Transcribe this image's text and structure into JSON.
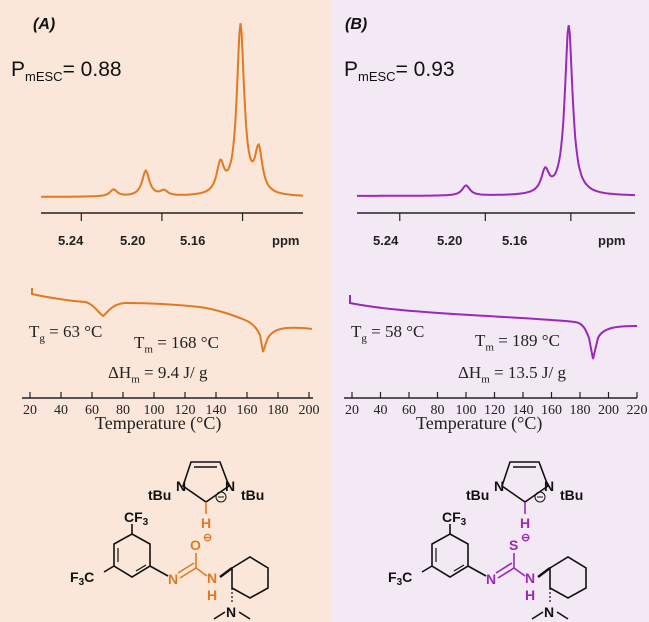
{
  "figure": {
    "panels": [
      {
        "label": "(A)",
        "p_mesc_label": "P",
        "p_mesc_sub": "mESC",
        "p_mesc_value": "= 0.88",
        "nmr_ticks": [
          "5.24",
          "5.20",
          "5.16"
        ],
        "nmr_unit": "ppm",
        "tg_label": "T",
        "tg_sub": "g",
        "tg_value": " = 63 °C",
        "tm_label": "T",
        "tm_sub": "m",
        "tm_value": " = 168 °C",
        "dh_label": "ΔH",
        "dh_sub": "m",
        "dh_value": " = 9.4 J/ g",
        "temp_ticks": [
          "20",
          "40",
          "60",
          "80",
          "100",
          "120",
          "140",
          "160",
          "180",
          "200"
        ],
        "temp_axis_title": "Temperature (°C)",
        "color": "#e07a22"
      },
      {
        "label": "(B)",
        "p_mesc_label": "P",
        "p_mesc_sub": "mESC",
        "p_mesc_value": "= 0.93",
        "nmr_ticks": [
          "5.24",
          "5.20",
          "5.16"
        ],
        "nmr_unit": "ppm",
        "tg_label": "T",
        "tg_sub": "g",
        "tg_value": " = 58 °C",
        "tm_label": "T",
        "tm_sub": "m",
        "tm_value": " = 189 °C",
        "dh_label": "ΔH",
        "dh_sub": "m",
        "dh_value": " = 13.5 J/ g",
        "temp_ticks": [
          "20",
          "40",
          "60",
          "80",
          "100",
          "120",
          "140",
          "160",
          "180",
          "200",
          "220"
        ],
        "temp_axis_title": "Temperature (°C)",
        "color": "#9b28b8"
      }
    ],
    "structure": {
      "tbu": "tBu",
      "cf3": "CF",
      "cf3_sub": "3",
      "f3c_f": "F",
      "f3c_sub": "3",
      "f3c_c": "C",
      "n": "N",
      "h": "H",
      "o": "O",
      "s": "S",
      "minus": "⊖"
    }
  },
  "chart_data": [
    {
      "type": "line",
      "panel": "A",
      "name": "1H NMR methine region",
      "x_range": [
        5.26,
        5.13
      ],
      "xlabel": "ppm",
      "x_ticks": [
        5.24,
        5.2,
        5.16
      ],
      "peaks_ppm": [
        5.224,
        5.208,
        5.199,
        5.171,
        5.161,
        5.152
      ],
      "relative_heights": [
        0.04,
        0.15,
        0.03,
        0.17,
        1.0,
        0.25
      ]
    },
    {
      "type": "line",
      "panel": "A",
      "name": "DSC",
      "xlabel": "Temperature (°C)",
      "xlim": [
        20,
        200
      ],
      "Tg_C": 63,
      "Tm_C": 168,
      "dHm_J_per_g": 9.4
    },
    {
      "type": "line",
      "panel": "B",
      "name": "1H NMR methine region",
      "x_range": [
        5.26,
        5.13
      ],
      "xlabel": "ppm",
      "x_ticks": [
        5.24,
        5.2,
        5.16
      ],
      "peaks_ppm": [
        5.209,
        5.172,
        5.161
      ],
      "relative_heights": [
        0.06,
        0.13,
        1.0
      ]
    },
    {
      "type": "line",
      "panel": "B",
      "name": "DSC",
      "xlabel": "Temperature (°C)",
      "xlim": [
        20,
        220
      ],
      "Tg_C": 58,
      "Tm_C": 189,
      "dHm_J_per_g": 13.5
    }
  ]
}
